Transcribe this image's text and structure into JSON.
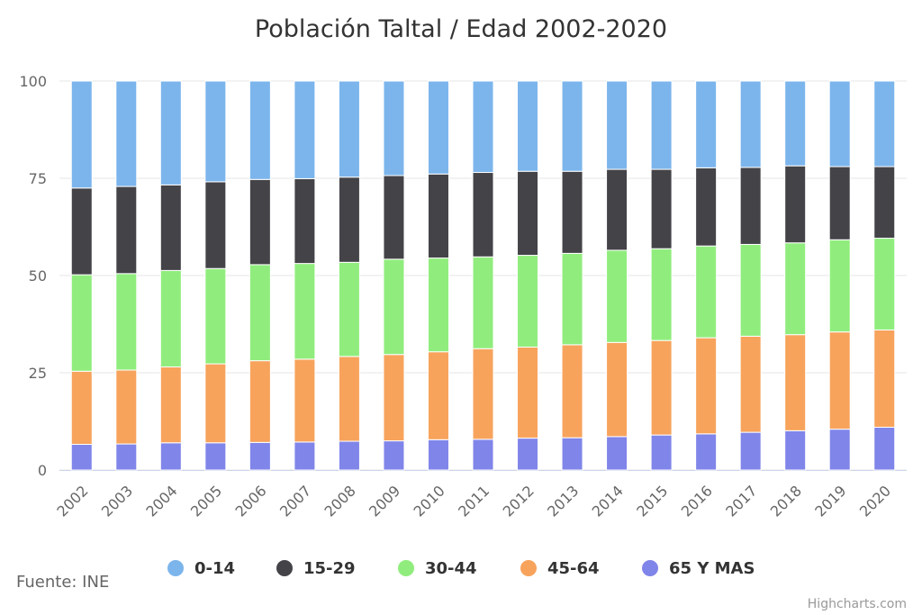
{
  "chart_data": {
    "type": "bar",
    "stacking": "percent",
    "title": "Población Taltal / Edad 2002-2020",
    "categories": [
      "2002",
      "2003",
      "2004",
      "2005",
      "2006",
      "2007",
      "2008",
      "2009",
      "2010",
      "2011",
      "2012",
      "2013",
      "2014",
      "2015",
      "2016",
      "2017",
      "2018",
      "2019",
      "2020"
    ],
    "y_ticks": [
      "0",
      "25",
      "50",
      "75",
      "100"
    ],
    "ylim": [
      0,
      100
    ],
    "grid": true,
    "legend_position": "bottom-center",
    "series": [
      {
        "name": "65 Y MAS",
        "color": "#8085e9",
        "values": [
          6.6,
          6.7,
          7.0,
          7.0,
          7.1,
          7.2,
          7.4,
          7.5,
          7.8,
          7.9,
          8.2,
          8.3,
          8.6,
          9.0,
          9.3,
          9.7,
          10.1,
          10.5,
          11.0
        ]
      },
      {
        "name": "45-64",
        "color": "#f7a35c",
        "values": [
          18.8,
          19.0,
          19.5,
          20.3,
          21.0,
          21.3,
          21.8,
          22.2,
          22.6,
          23.3,
          23.4,
          23.9,
          24.2,
          24.3,
          24.7,
          24.7,
          24.7,
          25.0,
          25.0
        ]
      },
      {
        "name": "30-44",
        "color": "#90ed7d",
        "values": [
          24.8,
          24.8,
          24.8,
          24.5,
          24.7,
          24.6,
          24.2,
          24.5,
          24.1,
          23.6,
          23.6,
          23.5,
          23.7,
          23.6,
          23.6,
          23.6,
          23.6,
          23.7,
          23.6
        ]
      },
      {
        "name": "15-29",
        "color": "#434348",
        "values": [
          22.3,
          22.4,
          22.0,
          22.3,
          21.9,
          21.8,
          21.9,
          21.5,
          21.6,
          21.7,
          21.6,
          21.1,
          20.8,
          20.4,
          20.1,
          19.8,
          19.8,
          18.8,
          18.4
        ]
      },
      {
        "name": "0-14",
        "color": "#7cb5ec",
        "values": [
          27.5,
          27.1,
          26.7,
          25.9,
          25.3,
          25.1,
          24.7,
          24.3,
          23.9,
          23.5,
          23.2,
          23.2,
          22.7,
          22.7,
          22.3,
          22.2,
          21.8,
          22.0,
          22.0
        ]
      }
    ],
    "legend_order": [
      "0-14",
      "15-29",
      "30-44",
      "45-64",
      "65 Y MAS"
    ]
  },
  "source_label": "Fuente: INE",
  "credits": "Highcharts.com"
}
